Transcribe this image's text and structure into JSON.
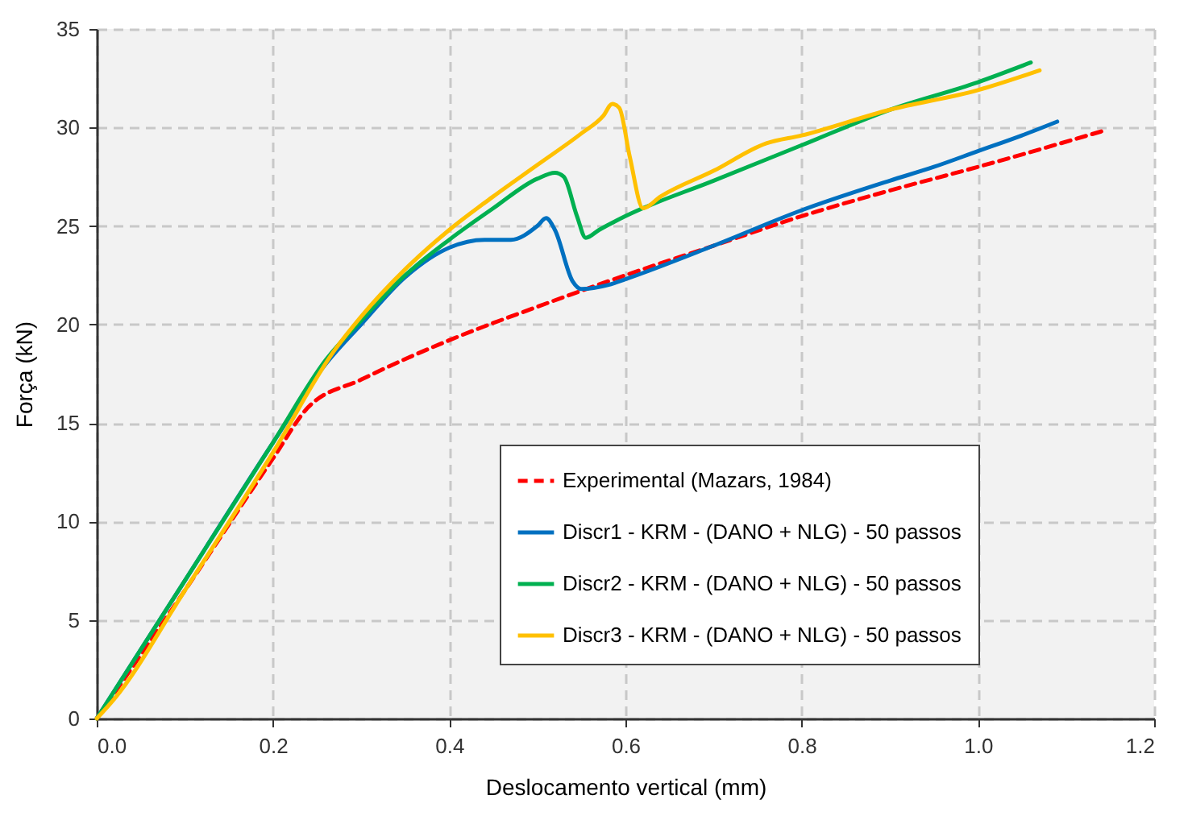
{
  "chart_data": {
    "type": "line",
    "xlabel": "Deslocamento vertical (mm)",
    "ylabel": "Força (kN)",
    "xlim": [
      0,
      1.2
    ],
    "xticks": [
      {
        "value": 0,
        "label": "0.0"
      },
      0.2,
      0.4,
      0.6,
      0.8,
      {
        "value": 1,
        "label": "1.0"
      },
      1.2
    ],
    "ylim": [
      0,
      35
    ],
    "yticks": [
      0,
      5,
      10,
      15,
      20,
      25,
      30,
      35
    ],
    "grid": true,
    "legend": "bottom right",
    "series": [
      {
        "name": "Experimental (Mazars, 1984)",
        "color": "#ff0000",
        "line_style": "dashed",
        "x": [
          0,
          0.1,
          0.2,
          0.24,
          0.3,
          0.4,
          0.5,
          0.6,
          0.7,
          0.8,
          0.9,
          1.0,
          1.14
        ],
        "values": [
          0,
          6.5,
          13.2,
          15.8,
          17.2,
          19.2,
          20.9,
          22.5,
          24,
          25.5,
          26.8,
          28,
          29.8
        ]
      },
      {
        "name": "Discr1 - KRM - (DANO + NLG) - 50 passos",
        "color": "#0070c0",
        "line_style": "solid",
        "x": [
          0,
          0.1,
          0.2,
          0.26,
          0.3,
          0.35,
          0.4,
          0.44,
          0.47,
          0.5,
          0.51,
          0.52,
          0.54,
          0.55,
          0.58,
          0.6,
          0.7,
          0.8,
          0.9,
          0.95,
          1.0,
          1.05,
          1.09
        ],
        "values": [
          0,
          7,
          14,
          18,
          20,
          22.4,
          23.9,
          24.3,
          24.3,
          25,
          25.4,
          24.8,
          22.2,
          21.8,
          22,
          22.3,
          24,
          25.8,
          27.3,
          28,
          28.8,
          29.6,
          30.3
        ]
      },
      {
        "name": "Discr2 - KRM - (DANO + NLG) - 50 passos",
        "color": "#00b050",
        "line_style": "solid",
        "x": [
          0,
          0.1,
          0.2,
          0.26,
          0.3,
          0.35,
          0.4,
          0.45,
          0.5,
          0.52,
          0.53,
          0.545,
          0.555,
          0.57,
          0.6,
          0.7,
          0.8,
          0.9,
          1.0,
          1.06
        ],
        "values": [
          0,
          7,
          14,
          18.2,
          20.2,
          22.5,
          24.3,
          25.9,
          27.4,
          27.7,
          27.5,
          25.5,
          24.4,
          24.8,
          25.5,
          27.3,
          29.1,
          30.9,
          32.3,
          33.3
        ]
      },
      {
        "name": "Discr3 - KRM - (DANO + NLG) - 50 passos",
        "color": "#ffc000",
        "line_style": "solid",
        "x": [
          0,
          0.02,
          0.1,
          0.2,
          0.27,
          0.3,
          0.35,
          0.4,
          0.45,
          0.5,
          0.55,
          0.575,
          0.585,
          0.593,
          0.605,
          0.62,
          0.64,
          0.7,
          0.76,
          0.8,
          0.9,
          1.0,
          1.07
        ],
        "values": [
          0,
          1,
          6.5,
          13.5,
          18.7,
          20.4,
          22.8,
          24.8,
          26.5,
          28.1,
          29.7,
          30.6,
          31.2,
          31,
          28.5,
          25.9,
          26.5,
          27.8,
          29.2,
          29.6,
          30.9,
          31.9,
          32.9
        ]
      }
    ]
  }
}
